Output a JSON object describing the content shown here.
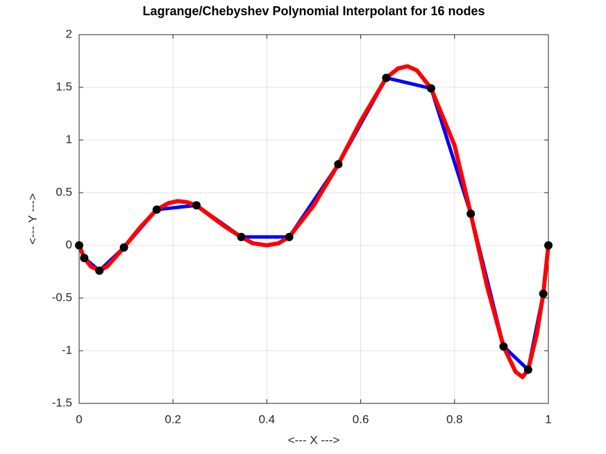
{
  "chart_data": {
    "type": "line",
    "title": "Lagrange/Chebyshev Polynomial Interpolant for 16 nodes",
    "x_label": "<--- X --->",
    "y_label": "<--- Y --->",
    "xlim": [
      0,
      1
    ],
    "ylim": [
      -1.5,
      2
    ],
    "xticks": [
      0,
      0.2,
      0.4,
      0.6,
      0.8,
      1
    ],
    "yticks": [
      -1.5,
      -1,
      -0.5,
      0,
      0.5,
      1,
      1.5,
      2
    ],
    "grid": true,
    "series": [
      {
        "color": "#0000ff",
        "marker_color": "#000000",
        "x": [
          0,
          0.0109,
          0.0432,
          0.0955,
          0.1654,
          0.25,
          0.3455,
          0.4477,
          0.5523,
          0.6545,
          0.75,
          0.8346,
          0.9045,
          0.9568,
          0.9891,
          1
        ],
        "values": [
          0,
          -0.12,
          -0.24,
          -0.02,
          0.34,
          0.38,
          0.08,
          0.08,
          0.77,
          1.59,
          1.49,
          0.3,
          -0.96,
          -1.18,
          -0.46,
          0
        ]
      },
      {
        "color": "#ff0000",
        "x": [
          0,
          0.0109,
          0.025,
          0.0432,
          0.06,
          0.0955,
          0.13,
          0.1654,
          0.19,
          0.21,
          0.23,
          0.25,
          0.28,
          0.31,
          0.3455,
          0.37,
          0.4,
          0.425,
          0.4477,
          0.5,
          0.5523,
          0.6,
          0.6545,
          0.68,
          0.7,
          0.72,
          0.75,
          0.8,
          0.8346,
          0.87,
          0.9045,
          0.93,
          0.945,
          0.9568,
          0.975,
          0.9891,
          1
        ],
        "values": [
          0,
          -0.12,
          -0.2,
          -0.24,
          -0.2,
          -0.02,
          0.17,
          0.34,
          0.4,
          0.42,
          0.41,
          0.38,
          0.28,
          0.18,
          0.08,
          0.02,
          0,
          0.02,
          0.08,
          0.38,
          0.77,
          1.18,
          1.59,
          1.68,
          1.7,
          1.66,
          1.49,
          0.95,
          0.3,
          -0.4,
          -0.96,
          -1.2,
          -1.25,
          -1.18,
          -0.85,
          -0.46,
          0
        ]
      }
    ]
  }
}
